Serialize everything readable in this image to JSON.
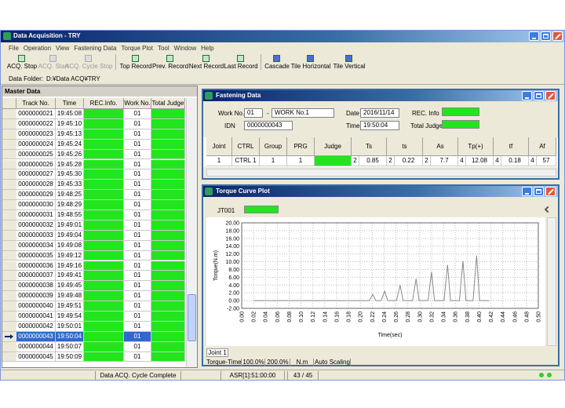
{
  "window": {
    "title": "Data Acquisition - TRY"
  },
  "menu": [
    "File",
    "Operation",
    "View",
    "Fastening Data",
    "Torque Plot",
    "Tool",
    "Window",
    "Help"
  ],
  "toolbar": [
    "ACQ. Stop",
    "ACQ. Start",
    "ACQ. Cycle Stop",
    "Top Record",
    "Prev. Record",
    "Next Record",
    "Last Record",
    "Cascade",
    "Tile Horizontal",
    "Tile Vertical"
  ],
  "data_folder": {
    "label": "Data Folder:",
    "value": "D:¥Data ACQ¥TRY"
  },
  "master_data": {
    "title": "Master Data",
    "columns": [
      "Track No.",
      "Time",
      "REC.Info.",
      "Work No.",
      "Total Judge"
    ],
    "rows": [
      [
        "0000000021",
        "19:45:08",
        "01"
      ],
      [
        "0000000022",
        "19:45:10",
        "01"
      ],
      [
        "0000000023",
        "19:45:13",
        "01"
      ],
      [
        "0000000024",
        "19:45:24",
        "01"
      ],
      [
        "0000000025",
        "19:45:26",
        "01"
      ],
      [
        "0000000026",
        "19:45:28",
        "01"
      ],
      [
        "0000000027",
        "19:45:30",
        "01"
      ],
      [
        "0000000028",
        "19:45:33",
        "01"
      ],
      [
        "0000000029",
        "19:48:25",
        "01"
      ],
      [
        "0000000030",
        "19:48:29",
        "01"
      ],
      [
        "0000000031",
        "19:48:55",
        "01"
      ],
      [
        "0000000032",
        "19:49:01",
        "01"
      ],
      [
        "0000000033",
        "19:49:04",
        "01"
      ],
      [
        "0000000034",
        "19:49:08",
        "01"
      ],
      [
        "0000000035",
        "19:49:12",
        "01"
      ],
      [
        "0000000036",
        "19:49:16",
        "01"
      ],
      [
        "0000000037",
        "19:49:41",
        "01"
      ],
      [
        "0000000038",
        "19:49:45",
        "01"
      ],
      [
        "0000000039",
        "19:49:48",
        "01"
      ],
      [
        "0000000040",
        "19:49:51",
        "01"
      ],
      [
        "0000000041",
        "19:49:54",
        "01"
      ],
      [
        "0000000042",
        "19:50:01",
        "01"
      ],
      [
        "0000000043",
        "19:50:04",
        "01"
      ],
      [
        "0000000044",
        "19:50:07",
        "01"
      ],
      [
        "0000000045",
        "19:50:09",
        "01"
      ]
    ]
  },
  "fastening_data": {
    "title": "Fastening Data",
    "work_no_label": "Work No.",
    "work_no": "01",
    "work_sep": "-",
    "work_name": "WORK No.1",
    "date_label": "Date",
    "date": "2016/11/14",
    "rec_info_label": "REC. Info",
    "idn_label": "IDN",
    "idn": "0000000043",
    "time_label": "Time",
    "time": "19:50:04",
    "total_judge_label": "Total Judge",
    "columns": [
      "Joint",
      "CTRL",
      "Group",
      "PRG",
      "Judge",
      "Ts",
      "ts",
      "As",
      "Tp(+)",
      "tf",
      "Af"
    ],
    "row": [
      "1",
      "CTRL 1",
      "1",
      "1",
      null,
      [
        "2",
        "0.85"
      ],
      [
        "2",
        "0.22"
      ],
      [
        "2",
        "7.7"
      ],
      [
        "4",
        "12.08"
      ],
      [
        "4",
        "0.18"
      ],
      [
        "4",
        "57"
      ]
    ]
  },
  "torque_plot": {
    "title": "Torque Curve Plot",
    "channel": "JT001",
    "tab": "Joint 1",
    "status": [
      "Torque-Time",
      "100.0%",
      "200.0%",
      "N.m",
      "Auto Scaling"
    ]
  },
  "status_bar": [
    "Data ACQ. Cycle Complete",
    "ASR[1]:51:00:00",
    "43 / 45"
  ],
  "chart_data": {
    "type": "line",
    "y_label": "Torque(N.m)",
    "x_label": "Time(sec)",
    "color": "#8a8a8a",
    "grid": true,
    "x": [
      0.02,
      0.215,
      0.221,
      0.226,
      0.235,
      0.241,
      0.246,
      0.261,
      0.267,
      0.272,
      0.288,
      0.294,
      0.299,
      0.314,
      0.32,
      0.325,
      0.341,
      0.347,
      0.352,
      0.367,
      0.373,
      0.378,
      0.39,
      0.396,
      0.401,
      0.417
    ],
    "values": [
      0,
      0,
      1.6,
      0,
      0,
      2.4,
      0,
      0,
      4.0,
      0,
      0,
      5.6,
      0,
      0,
      7.4,
      0,
      0,
      9.2,
      0,
      0,
      10.2,
      0,
      0,
      11.6,
      0,
      0
    ],
    "xlim": [
      0,
      0.5
    ],
    "ylim": [
      -2,
      20
    ],
    "yticks": [
      {
        "value": -2,
        "label": "-2.00"
      },
      {
        "value": 0,
        "label": "0.00"
      },
      {
        "value": 2,
        "label": "2.00"
      },
      {
        "value": 4,
        "label": "4.00"
      },
      {
        "value": 6,
        "label": "6.00"
      },
      {
        "value": 8,
        "label": "8.00"
      },
      {
        "value": 10,
        "label": "10.00"
      },
      {
        "value": 12,
        "label": "12.00"
      },
      {
        "value": 14,
        "label": "14.00"
      },
      {
        "value": 16,
        "label": "16.00"
      },
      {
        "value": 18,
        "label": "18.00"
      },
      {
        "value": 20,
        "label": "20.00"
      }
    ],
    "xticks": [
      {
        "value": 0,
        "label": "0.00"
      },
      {
        "value": 0.02,
        "label": "0.02"
      },
      {
        "value": 0.04,
        "label": "0.04"
      },
      {
        "value": 0.06,
        "label": "0.06"
      },
      {
        "value": 0.08,
        "label": "0.08"
      },
      {
        "value": 0.1,
        "label": "0.10"
      },
      {
        "value": 0.12,
        "label": "0.12"
      },
      {
        "value": 0.14,
        "label": "0.14"
      },
      {
        "value": 0.16,
        "label": "0.16"
      },
      {
        "value": 0.18,
        "label": "0.18"
      },
      {
        "value": 0.2,
        "label": "0.20"
      },
      {
        "value": 0.22,
        "label": "0.22"
      },
      {
        "value": 0.24,
        "label": "0.24"
      },
      {
        "value": 0.26,
        "label": "0.26"
      },
      {
        "value": 0.28,
        "label": "0.28"
      },
      {
        "value": 0.3,
        "label": "0.30"
      },
      {
        "value": 0.32,
        "label": "0.32"
      },
      {
        "value": 0.34,
        "label": "0.34"
      },
      {
        "value": 0.36,
        "label": "0.36"
      },
      {
        "value": 0.38,
        "label": "0.38"
      },
      {
        "value": 0.4,
        "label": "0.40"
      },
      {
        "value": 0.42,
        "label": "0.42"
      },
      {
        "value": 0.44,
        "label": "0.44"
      },
      {
        "value": 0.46,
        "label": "0.46"
      },
      {
        "value": 0.48,
        "label": "0.48"
      },
      {
        "value": 0.5,
        "label": "0.50"
      }
    ]
  }
}
